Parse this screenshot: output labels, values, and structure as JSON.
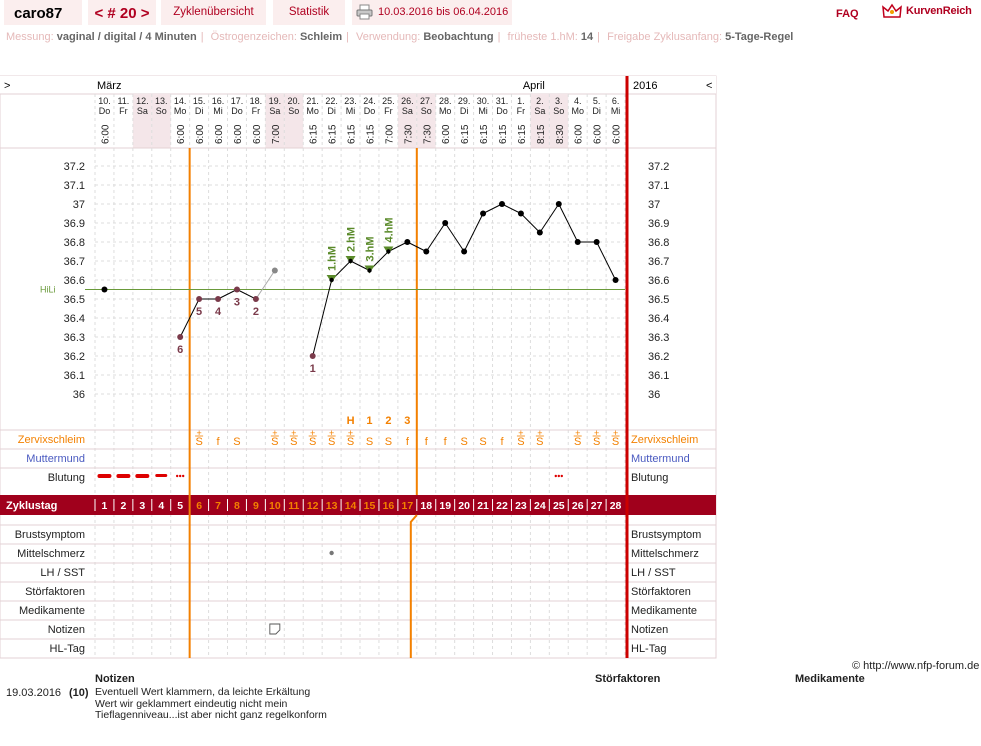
{
  "header": {
    "user": "caro87",
    "cycle_label": "< # 20 >",
    "tab_overview": "Zyklenübersicht",
    "tab_stats": "Statistik",
    "date_range": "10.03.2016 bis 06.04.2016",
    "faq": "FAQ",
    "logo": "KurvenReich",
    "icon_print": "printer-icon",
    "icon_logo": "crown-icon"
  },
  "settings": [
    {
      "key": "Messung:",
      "value": "vaginal / digital / 4 Minuten"
    },
    {
      "key": "Östrogenzeichen:",
      "value": "Schleim"
    },
    {
      "key": "Verwendung:",
      "value": "Beobachtung"
    },
    {
      "key": "früheste 1.hM:",
      "value": "14"
    },
    {
      "key": "Freigabe Zyklusanfang:",
      "value": "5-Tage-Regel"
    }
  ],
  "chart": {
    "prev_arrow": ">",
    "next_arrow": "<",
    "month1": "März",
    "month2": "April",
    "year": "2016",
    "hl_label": "HiLi",
    "hl_value": 36.55,
    "days": [
      {
        "d": "10.",
        "w": "Do",
        "t": "6:00",
        "we": false
      },
      {
        "d": "11.",
        "w": "Fr",
        "t": "",
        "we": false
      },
      {
        "d": "12.",
        "w": "Sa",
        "t": "",
        "we": true
      },
      {
        "d": "13.",
        "w": "So",
        "t": "",
        "we": true
      },
      {
        "d": "14.",
        "w": "Mo",
        "t": "6:00",
        "we": false
      },
      {
        "d": "15.",
        "w": "Di",
        "t": "6:00",
        "we": false
      },
      {
        "d": "16.",
        "w": "Mi",
        "t": "6:00",
        "we": false
      },
      {
        "d": "17.",
        "w": "Do",
        "t": "6:00",
        "we": false
      },
      {
        "d": "18.",
        "w": "Fr",
        "t": "6:00",
        "we": false
      },
      {
        "d": "19.",
        "w": "Sa",
        "t": "7:00",
        "we": true
      },
      {
        "d": "20.",
        "w": "So",
        "t": "",
        "we": true
      },
      {
        "d": "21.",
        "w": "Mo",
        "t": "6:15",
        "we": false
      },
      {
        "d": "22.",
        "w": "Di",
        "t": "6:15",
        "we": false
      },
      {
        "d": "23.",
        "w": "Mi",
        "t": "6:15",
        "we": false
      },
      {
        "d": "24.",
        "w": "Do",
        "t": "6:15",
        "we": false
      },
      {
        "d": "25.",
        "w": "Fr",
        "t": "7:00",
        "we": false
      },
      {
        "d": "26.",
        "w": "Sa",
        "t": "7:30",
        "we": true
      },
      {
        "d": "27.",
        "w": "So",
        "t": "7:30",
        "we": true
      },
      {
        "d": "28.",
        "w": "Mo",
        "t": "6:00",
        "we": false
      },
      {
        "d": "29.",
        "w": "Di",
        "t": "6:15",
        "we": false
      },
      {
        "d": "30.",
        "w": "Mi",
        "t": "6:15",
        "we": false
      },
      {
        "d": "31.",
        "w": "Do",
        "t": "6:15",
        "we": false
      },
      {
        "d": "1.",
        "w": "Fr",
        "t": "6:15",
        "we": false
      },
      {
        "d": "2.",
        "w": "Sa",
        "t": "8:15",
        "we": true
      },
      {
        "d": "3.",
        "w": "So",
        "t": "8:30",
        "we": true
      },
      {
        "d": "4.",
        "w": "Mo",
        "t": "6:00",
        "we": false
      },
      {
        "d": "5.",
        "w": "Di",
        "t": "6:00",
        "we": false
      },
      {
        "d": "6.",
        "w": "Mi",
        "t": "6:00",
        "we": false
      }
    ],
    "y_ticks": [
      "37.2",
      "37.1",
      "37",
      "36.9",
      "36.8",
      "36.7",
      "36.6",
      "36.5",
      "36.4",
      "36.3",
      "36.2",
      "36.1",
      "36"
    ],
    "temps": [
      36.55,
      null,
      null,
      null,
      36.3,
      36.5,
      36.5,
      36.55,
      36.5,
      36.65,
      null,
      36.2,
      36.6,
      36.7,
      36.65,
      36.75,
      36.8,
      36.75,
      36.9,
      36.75,
      36.95,
      37.0,
      36.95,
      36.85,
      37.0,
      36.8,
      36.8,
      36.6
    ],
    "excluded_temp_index": 9,
    "low_labels": [
      {
        "i": 4,
        "label": "6"
      },
      {
        "i": 5,
        "label": "5"
      },
      {
        "i": 6,
        "label": "4"
      },
      {
        "i": 7,
        "label": "3"
      },
      {
        "i": 8,
        "label": "2"
      },
      {
        "i": 11,
        "label": "1"
      }
    ],
    "high_labels": [
      {
        "i": 12,
        "label": "1.hM"
      },
      {
        "i": 13,
        "label": "2.hM"
      },
      {
        "i": 14,
        "label": "3.hM"
      },
      {
        "i": 15,
        "label": "4.hM"
      }
    ],
    "peak_labels": [
      {
        "i": 13,
        "label": "H"
      },
      {
        "i": 14,
        "label": "1"
      },
      {
        "i": 15,
        "label": "2"
      },
      {
        "i": 16,
        "label": "3"
      }
    ],
    "mucus": [
      "",
      "",
      "",
      "",
      "",
      "S+",
      "f",
      "S",
      "",
      "S+",
      "S+",
      "S+",
      "S+",
      "S+",
      "S",
      "S",
      "f",
      "f",
      "f",
      "S",
      "S",
      "f",
      "S+",
      "S+",
      "",
      "S+",
      "S+",
      "S+"
    ],
    "bleeding": [
      "heavy",
      "heavy",
      "heavy",
      "medium",
      "spot",
      "",
      "",
      "",
      "",
      "",
      "",
      "",
      "",
      "",
      "",
      "",
      "",
      "",
      "",
      "",
      "",
      "",
      "",
      "",
      "spot",
      "",
      "",
      ""
    ],
    "mittelschmerz_index": 12,
    "notes_icon_index": 9,
    "first_fertile_day": 6,
    "last_fertile_day": 17,
    "rows": {
      "zervix": "Zervixschleim",
      "muttermund": "Muttermund",
      "blutung": "Blutung",
      "zyklustag": "Zyklustag",
      "brust": "Brustsymptom",
      "mittel": "Mittelschmerz",
      "lh": "LH / SST",
      "stoer": "Störfaktoren",
      "medi": "Medikamente",
      "notizen": "Notizen",
      "hltag": "HL-Tag"
    },
    "colors": {
      "fertile": "#f38000",
      "cycle_bar": "#a0001c",
      "hl": "#6a9a3a",
      "temp": "#000",
      "low": "#7a3a4a",
      "high_marker": "#5a8a2a",
      "red_line": "#cc0000"
    }
  },
  "copyright": "© http://www.nfp-forum.de",
  "notes": {
    "h_notes": "Notizen",
    "h_stoer": "Störfaktoren",
    "h_medi": "Medikamente",
    "entry_date": "19.03.2016",
    "entry_num": "(10)",
    "entry_lines": [
      "Eventuell Wert klammern, da leichte Erkältung",
      "Wert wir geklammert eindeutig nicht mein",
      "Tieflagenniveau...ist aber nicht ganz regelkonform"
    ]
  }
}
